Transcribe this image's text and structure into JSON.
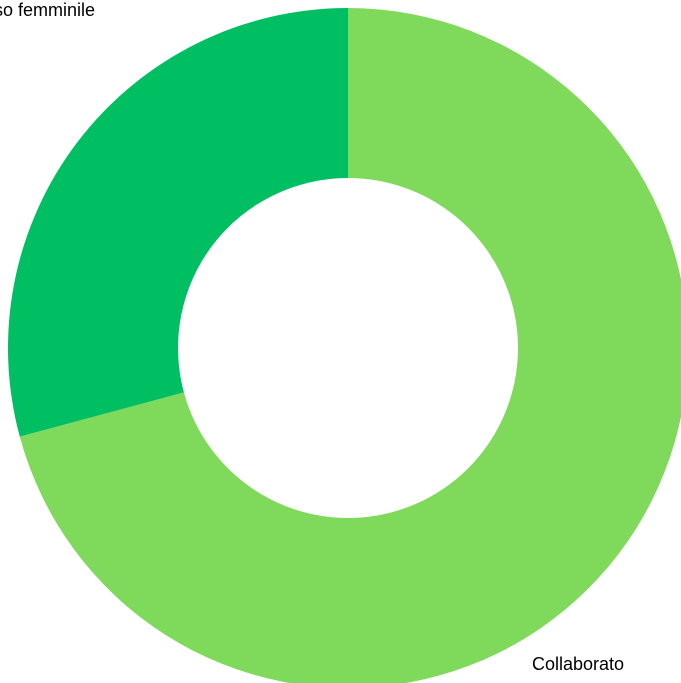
{
  "chart_data": {
    "type": "pie",
    "donut": true,
    "title": "",
    "legend": "none",
    "series": [
      {
        "categories": [
          "Collaboratori di sesso maschile",
          "Collaboratori di sesso femminile"
        ],
        "values": [
          70.8,
          29.2
        ],
        "colors": [
          "#7fd95a",
          "#00bf63"
        ]
      }
    ],
    "slice_labels": {
      "femminile_visible": "so femminile",
      "maschile_visible": "Collaborato"
    }
  }
}
